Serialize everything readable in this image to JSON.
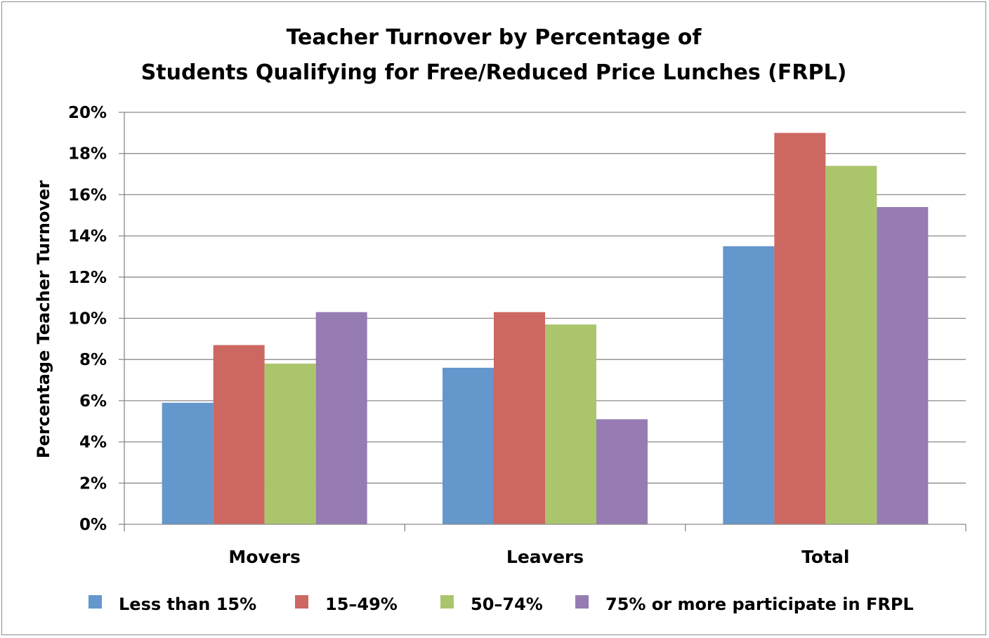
{
  "chart_data": {
    "type": "bar",
    "title_lines": [
      "Teacher Turnover by Percentage of",
      "Students Qualifying for Free/Reduced Price Lunches (FRPL)"
    ],
    "xlabel": "",
    "ylabel": "Percentage Teacher Turnover",
    "ylim": [
      0,
      20
    ],
    "yticks": [
      0,
      2,
      4,
      6,
      8,
      10,
      12,
      14,
      16,
      18,
      20
    ],
    "y_tick_suffix": "%",
    "grid": true,
    "legend_position": "bottom",
    "categories": [
      "Movers",
      "Leavers",
      "Total"
    ],
    "series": [
      {
        "name": "Less than 15%",
        "color": "#6497cc",
        "values": [
          5.9,
          7.6,
          13.5
        ]
      },
      {
        "name": "15–49%",
        "color": "#cd6762",
        "values": [
          8.7,
          10.3,
          19.0
        ]
      },
      {
        "name": "50–74%",
        "color": "#abc56d",
        "values": [
          7.8,
          9.7,
          17.4
        ]
      },
      {
        "name": "75% or more participate in FRPL",
        "color": "#967cb3",
        "values": [
          10.3,
          5.1,
          15.4
        ]
      }
    ]
  }
}
